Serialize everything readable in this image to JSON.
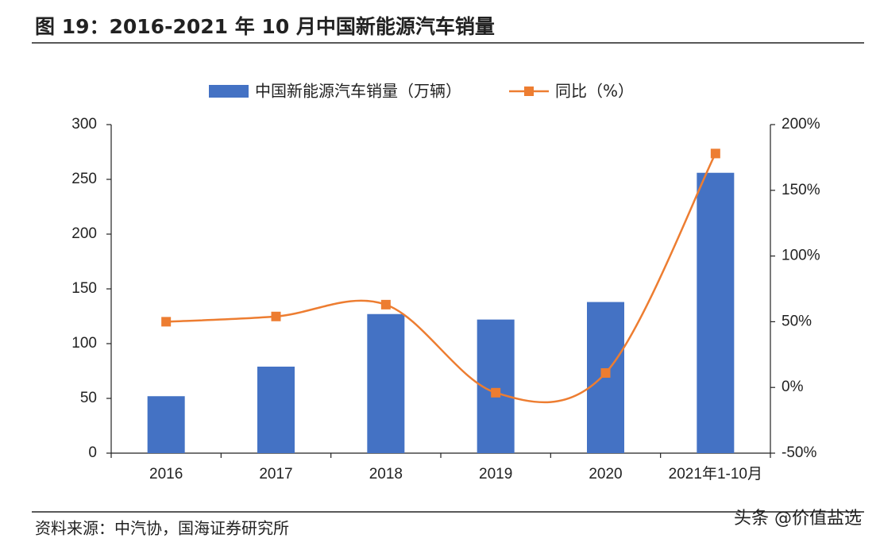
{
  "chart_data": {
    "type": "bar-line",
    "title": "图 19：2016-2021 年 10 月中国新能源汽车销量",
    "categories": [
      "2016",
      "2017",
      "2018",
      "2019",
      "2020",
      "2021年1-10月"
    ],
    "series": [
      {
        "name": "中国新能源汽车销量（万辆）",
        "color": "#4472c4",
        "type": "bar",
        "values": [
          52,
          79,
          127,
          122,
          138,
          256
        ]
      },
      {
        "name": "同比（%）",
        "color": "#ed7d31",
        "type": "line",
        "axis": "y2",
        "values": [
          50,
          54,
          63,
          -4,
          11,
          178
        ]
      }
    ],
    "ylim": [
      0,
      300
    ],
    "yticks": [
      0,
      50,
      100,
      150,
      200,
      250,
      300
    ],
    "y2lim": [
      -50,
      200
    ],
    "y2ticks": [
      {
        "value": -50,
        "label": "-50%"
      },
      {
        "value": 0,
        "label": "0%"
      },
      {
        "value": 50,
        "label": "50%"
      },
      {
        "value": 100,
        "label": "100%"
      },
      {
        "value": 150,
        "label": "150%"
      },
      {
        "value": 200,
        "label": "200%"
      }
    ],
    "source": "资料来源：中汽协，国海证券研究所",
    "watermark": "头条 @价值盐选"
  }
}
